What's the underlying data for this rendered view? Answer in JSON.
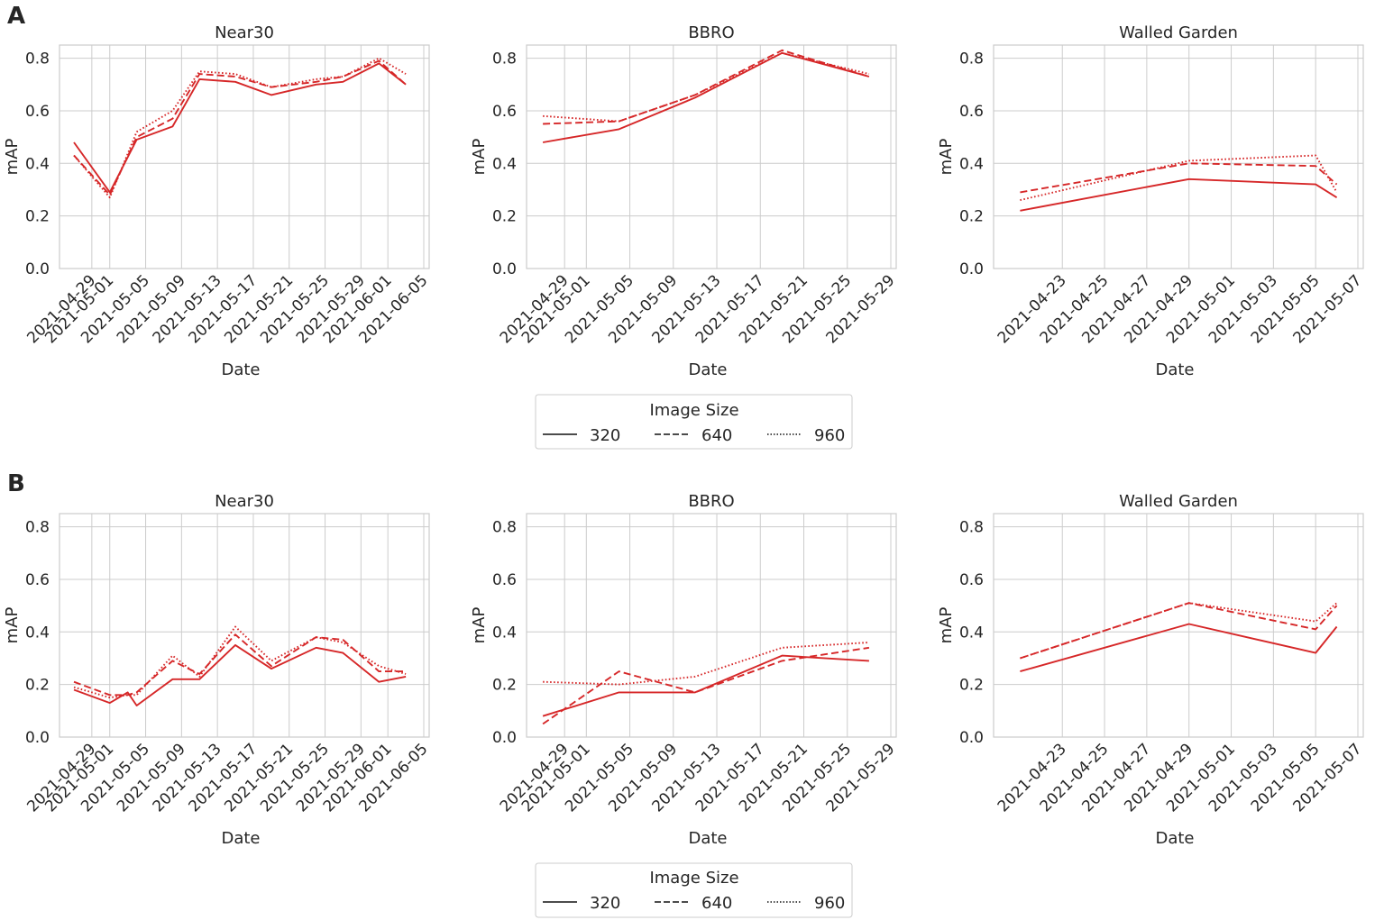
{
  "legend": {
    "title": "Image Size",
    "entries": [
      "320",
      "640",
      "960"
    ]
  },
  "colors": {
    "series": "#d62728",
    "grid": "#cccccc",
    "text": "#262626"
  },
  "panels": [
    {
      "label": "A"
    },
    {
      "label": "B"
    }
  ],
  "chart_data": [
    {
      "type": "line",
      "panel": "A",
      "title": "Near30",
      "xlabel": "Date",
      "ylabel": "mAP",
      "ylim": [
        0,
        0.85
      ],
      "yticks": [
        "0.0",
        "0.2",
        "0.4",
        "0.6",
        "0.8"
      ],
      "xlim": [
        "2021-04-26",
        "2021-06-05"
      ],
      "xticks": [
        "2021-04-29",
        "2021-05-01",
        "2021-05-05",
        "2021-05-09",
        "2021-05-13",
        "2021-05-17",
        "2021-05-21",
        "2021-05-25",
        "2021-05-29",
        "2021-06-01",
        "2021-06-05"
      ],
      "x": [
        "2021-04-27",
        "2021-05-01",
        "2021-05-04",
        "2021-05-08",
        "2021-05-11",
        "2021-05-15",
        "2021-05-19",
        "2021-05-24",
        "2021-05-27",
        "2021-05-31",
        "2021-06-03"
      ],
      "series": [
        {
          "name": "320",
          "style": "solid",
          "values": [
            0.48,
            0.29,
            0.49,
            0.54,
            0.72,
            0.71,
            0.66,
            0.7,
            0.71,
            0.78,
            0.7
          ]
        },
        {
          "name": "640",
          "style": "dashed",
          "values": [
            0.43,
            0.28,
            0.5,
            0.57,
            0.74,
            0.73,
            0.69,
            0.71,
            0.73,
            0.79,
            0.7
          ]
        },
        {
          "name": "960",
          "style": "dotted",
          "values": [
            0.43,
            0.27,
            0.52,
            0.6,
            0.75,
            0.74,
            0.69,
            0.72,
            0.73,
            0.8,
            0.74
          ]
        }
      ]
    },
    {
      "type": "line",
      "panel": "A",
      "title": "BBRO",
      "xlabel": "Date",
      "ylabel": "mAP",
      "ylim": [
        0,
        0.85
      ],
      "yticks": [
        "0.0",
        "0.2",
        "0.4",
        "0.6",
        "0.8"
      ],
      "xlim": [
        "2021-04-26",
        "2021-05-29"
      ],
      "xticks": [
        "2021-04-29",
        "2021-05-01",
        "2021-05-05",
        "2021-05-09",
        "2021-05-13",
        "2021-05-17",
        "2021-05-21",
        "2021-05-25",
        "2021-05-29"
      ],
      "x": [
        "2021-04-27",
        "2021-05-04",
        "2021-05-11",
        "2021-05-19",
        "2021-05-27"
      ],
      "series": [
        {
          "name": "320",
          "style": "solid",
          "values": [
            0.48,
            0.53,
            0.65,
            0.82,
            0.73
          ]
        },
        {
          "name": "640",
          "style": "dashed",
          "values": [
            0.55,
            0.56,
            0.66,
            0.83,
            0.73
          ]
        },
        {
          "name": "960",
          "style": "dotted",
          "values": [
            0.58,
            0.56,
            0.66,
            0.82,
            0.74
          ]
        }
      ]
    },
    {
      "type": "line",
      "panel": "A",
      "title": "Walled Garden",
      "xlabel": "Date",
      "ylabel": "mAP",
      "ylim": [
        0,
        0.85
      ],
      "yticks": [
        "0.0",
        "0.2",
        "0.4",
        "0.6",
        "0.8"
      ],
      "xlim": [
        "2021-04-20",
        "2021-05-07"
      ],
      "xticks": [
        "2021-04-23",
        "2021-04-25",
        "2021-04-27",
        "2021-04-29",
        "2021-05-01",
        "2021-05-03",
        "2021-05-05",
        "2021-05-07"
      ],
      "x": [
        "2021-04-21",
        "2021-04-29",
        "2021-05-05",
        "2021-05-06"
      ],
      "series": [
        {
          "name": "320",
          "style": "solid",
          "values": [
            0.22,
            0.34,
            0.32,
            0.27
          ]
        },
        {
          "name": "640",
          "style": "dashed",
          "values": [
            0.29,
            0.4,
            0.39,
            0.32
          ]
        },
        {
          "name": "960",
          "style": "dotted",
          "values": [
            0.26,
            0.41,
            0.43,
            0.29
          ]
        }
      ]
    },
    {
      "type": "line",
      "panel": "B",
      "title": "Near30",
      "xlabel": "Date",
      "ylabel": "mAP",
      "ylim": [
        0,
        0.85
      ],
      "yticks": [
        "0.0",
        "0.2",
        "0.4",
        "0.6",
        "0.8"
      ],
      "xlim": [
        "2021-04-26",
        "2021-06-05"
      ],
      "xticks": [
        "2021-04-29",
        "2021-05-01",
        "2021-05-05",
        "2021-05-09",
        "2021-05-13",
        "2021-05-17",
        "2021-05-21",
        "2021-05-25",
        "2021-05-29",
        "2021-06-01",
        "2021-06-05"
      ],
      "x": [
        "2021-04-27",
        "2021-05-01",
        "2021-05-03",
        "2021-05-04",
        "2021-05-08",
        "2021-05-11",
        "2021-05-15",
        "2021-05-19",
        "2021-05-24",
        "2021-05-27",
        "2021-05-31",
        "2021-06-03"
      ],
      "series": [
        {
          "name": "320",
          "style": "solid",
          "values": [
            0.18,
            0.13,
            0.17,
            0.12,
            0.22,
            0.22,
            0.35,
            0.26,
            0.34,
            0.32,
            0.21,
            0.23
          ]
        },
        {
          "name": "640",
          "style": "dashed",
          "values": [
            0.21,
            0.16,
            0.16,
            0.17,
            0.29,
            0.24,
            0.39,
            0.27,
            0.38,
            0.37,
            0.25,
            0.25
          ]
        },
        {
          "name": "960",
          "style": "dotted",
          "values": [
            0.19,
            0.15,
            0.16,
            0.16,
            0.31,
            0.23,
            0.42,
            0.29,
            0.38,
            0.36,
            0.27,
            0.24
          ]
        }
      ]
    },
    {
      "type": "line",
      "panel": "B",
      "title": "BBRO",
      "xlabel": "Date",
      "ylabel": "mAP",
      "ylim": [
        0,
        0.85
      ],
      "yticks": [
        "0.0",
        "0.2",
        "0.4",
        "0.6",
        "0.8"
      ],
      "xlim": [
        "2021-04-26",
        "2021-05-29"
      ],
      "xticks": [
        "2021-04-29",
        "2021-05-01",
        "2021-05-05",
        "2021-05-09",
        "2021-05-13",
        "2021-05-17",
        "2021-05-21",
        "2021-05-25",
        "2021-05-29"
      ],
      "x": [
        "2021-04-27",
        "2021-05-04",
        "2021-05-11",
        "2021-05-19",
        "2021-05-27"
      ],
      "series": [
        {
          "name": "320",
          "style": "solid",
          "values": [
            0.08,
            0.17,
            0.17,
            0.31,
            0.29
          ]
        },
        {
          "name": "640",
          "style": "dashed",
          "values": [
            0.05,
            0.25,
            0.17,
            0.29,
            0.34
          ]
        },
        {
          "name": "960",
          "style": "dotted",
          "values": [
            0.21,
            0.2,
            0.23,
            0.34,
            0.36
          ]
        }
      ]
    },
    {
      "type": "line",
      "panel": "B",
      "title": "Walled Garden",
      "xlabel": "Date",
      "ylabel": "mAP",
      "ylim": [
        0,
        0.85
      ],
      "yticks": [
        "0.0",
        "0.2",
        "0.4",
        "0.6",
        "0.8"
      ],
      "xlim": [
        "2021-04-20",
        "2021-05-07"
      ],
      "xticks": [
        "2021-04-23",
        "2021-04-25",
        "2021-04-27",
        "2021-04-29",
        "2021-05-01",
        "2021-05-03",
        "2021-05-05",
        "2021-05-07"
      ],
      "x": [
        "2021-04-21",
        "2021-04-29",
        "2021-05-05",
        "2021-05-06"
      ],
      "series": [
        {
          "name": "320",
          "style": "solid",
          "values": [
            0.25,
            0.43,
            0.32,
            0.42
          ]
        },
        {
          "name": "640",
          "style": "dashed",
          "values": [
            0.3,
            0.51,
            0.41,
            0.5
          ]
        },
        {
          "name": "960",
          "style": "dotted",
          "values": [
            0.3,
            0.51,
            0.44,
            0.51
          ]
        }
      ]
    }
  ]
}
